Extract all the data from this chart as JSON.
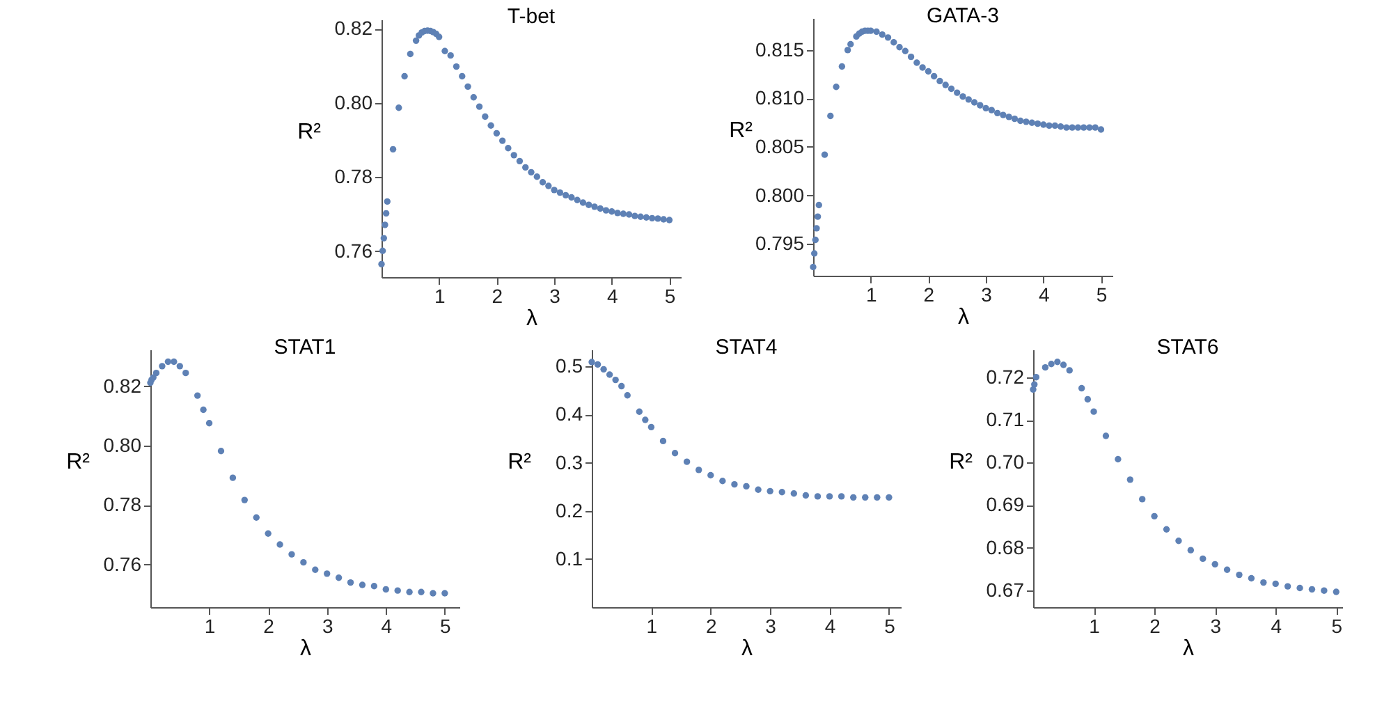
{
  "chart_data": [
    {
      "type": "scatter",
      "title": "T-bet",
      "xlabel": "λ",
      "ylabel": "R²",
      "color": "#5e81b5",
      "marker": "circle",
      "xlim": [
        0,
        5.2
      ],
      "xticks": [
        1,
        2,
        3,
        4,
        5
      ],
      "ylim": [
        0.753,
        0.8225
      ],
      "yticks": [
        0.76,
        0.78,
        {
          "value": 0.8,
          "label": "0.80"
        },
        0.82
      ],
      "x": [
        0,
        0.02,
        0.04,
        0.06,
        0.08,
        0.1,
        0.2,
        0.3,
        0.4,
        0.5,
        0.6,
        0.65,
        0.7,
        0.75,
        0.8,
        0.85,
        0.9,
        0.95,
        1.0,
        1.1,
        1.2,
        1.3,
        1.4,
        1.5,
        1.6,
        1.7,
        1.8,
        1.9,
        2.0,
        2.1,
        2.2,
        2.3,
        2.4,
        2.5,
        2.6,
        2.7,
        2.8,
        2.9,
        3.0,
        3.1,
        3.2,
        3.3,
        3.4,
        3.5,
        3.6,
        3.7,
        3.8,
        3.9,
        4.0,
        4.1,
        4.2,
        4.3,
        4.4,
        4.5,
        4.6,
        4.7,
        4.8,
        4.9,
        5.0
      ],
      "values": [
        0.7565,
        0.7601,
        0.7635,
        0.7671,
        0.7702,
        0.7734,
        0.7875,
        0.7987,
        0.8072,
        0.8132,
        0.8168,
        0.8182,
        0.819,
        0.8194,
        0.8195,
        0.8194,
        0.8191,
        0.8186,
        0.8178,
        0.814,
        0.8128,
        0.8098,
        0.8072,
        0.8044,
        0.8015,
        0.799,
        0.7963,
        0.7939,
        0.7918,
        0.7898,
        0.7878,
        0.7859,
        0.7843,
        0.7826,
        0.7813,
        0.7801,
        0.7786,
        0.7776,
        0.7765,
        0.7758,
        0.7751,
        0.7745,
        0.7738,
        0.7731,
        0.7725,
        0.772,
        0.7715,
        0.771,
        0.7707,
        0.7703,
        0.7701,
        0.7699,
        0.7695,
        0.7693,
        0.7691,
        0.7689,
        0.7688,
        0.7686,
        0.7684
      ]
    },
    {
      "type": "scatter",
      "title": "GATA-3",
      "xlabel": "λ",
      "ylabel": "R²",
      "color": "#5e81b5",
      "marker": "circle",
      "xlim": [
        0,
        5.2
      ],
      "xticks": [
        1,
        2,
        3,
        4,
        5
      ],
      "ylim": [
        0.7917,
        0.8183
      ],
      "yticks": [
        0.795,
        {
          "value": 0.8,
          "label": "0.800"
        },
        0.805,
        {
          "value": 0.81,
          "label": "0.810"
        },
        0.815
      ],
      "x": [
        0,
        0.02,
        0.04,
        0.06,
        0.08,
        0.1,
        0.2,
        0.3,
        0.4,
        0.5,
        0.6,
        0.65,
        0.75,
        0.8,
        0.85,
        0.9,
        0.95,
        1.0,
        1.1,
        1.2,
        1.3,
        1.4,
        1.5,
        1.6,
        1.7,
        1.8,
        1.9,
        2.0,
        2.1,
        2.2,
        2.3,
        2.4,
        2.5,
        2.6,
        2.7,
        2.8,
        2.9,
        3.0,
        3.1,
        3.2,
        3.3,
        3.4,
        3.5,
        3.6,
        3.7,
        3.8,
        3.9,
        4.0,
        4.1,
        4.2,
        4.3,
        4.4,
        4.5,
        4.6,
        4.7,
        4.8,
        4.9,
        5.0
      ],
      "values": [
        0.7926,
        0.794,
        0.7954,
        0.7966,
        0.7978,
        0.799,
        0.8042,
        0.8082,
        0.8112,
        0.8133,
        0.815,
        0.8156,
        0.8164,
        0.8167,
        0.8169,
        0.817,
        0.817,
        0.817,
        0.8169,
        0.8166,
        0.8163,
        0.8158,
        0.8153,
        0.8149,
        0.8143,
        0.8137,
        0.8132,
        0.8128,
        0.8123,
        0.8118,
        0.8114,
        0.811,
        0.8106,
        0.8102,
        0.8099,
        0.8096,
        0.8093,
        0.809,
        0.8088,
        0.8085,
        0.8083,
        0.8081,
        0.8079,
        0.8077,
        0.8076,
        0.8075,
        0.8074,
        0.8073,
        0.8072,
        0.8072,
        0.8071,
        0.807,
        0.807,
        0.807,
        0.807,
        0.807,
        0.807,
        0.8068
      ]
    },
    {
      "type": "scatter",
      "title": "STAT1",
      "xlabel": "λ",
      "ylabel": "R²",
      "color": "#5e81b5",
      "marker": "circle",
      "xlim": [
        0,
        5.25
      ],
      "xticks": [
        1,
        2,
        3,
        4,
        5
      ],
      "ylim": [
        0.7456,
        0.8324
      ],
      "yticks": [
        0.76,
        0.78,
        {
          "value": 0.8,
          "label": "0.80"
        },
        0.82
      ],
      "x": [
        0,
        0.02,
        0.05,
        0.1,
        0.2,
        0.3,
        0.4,
        0.5,
        0.6,
        0.8,
        0.9,
        1.0,
        1.2,
        1.4,
        1.6,
        1.8,
        2.0,
        2.2,
        2.4,
        2.6,
        2.8,
        3.0,
        3.2,
        3.4,
        3.6,
        3.8,
        4.0,
        4.2,
        4.4,
        4.6,
        4.8,
        5.0
      ],
      "values": [
        0.8212,
        0.8222,
        0.823,
        0.8245,
        0.8268,
        0.8283,
        0.8283,
        0.8268,
        0.8245,
        0.8169,
        0.8121,
        0.8076,
        0.7982,
        0.7892,
        0.7817,
        0.7758,
        0.7704,
        0.7667,
        0.7634,
        0.7607,
        0.7582,
        0.7569,
        0.7555,
        0.7539,
        0.7531,
        0.7527,
        0.7516,
        0.7512,
        0.7507,
        0.7507,
        0.7503,
        0.7503
      ]
    },
    {
      "type": "scatter",
      "title": "STAT4",
      "xlabel": "λ",
      "ylabel": "R²",
      "color": "#5e81b5",
      "marker": "circle",
      "xlim": [
        0,
        5.2
      ],
      "xticks": [
        1,
        2,
        3,
        4,
        5
      ],
      "ylim": [
        0,
        0.535
      ],
      "yticks": [
        0.1,
        0.2,
        0.3,
        0.4,
        0.5
      ],
      "x": [
        0,
        0.1,
        0.2,
        0.3,
        0.4,
        0.5,
        0.6,
        0.8,
        0.9,
        1.0,
        1.2,
        1.4,
        1.6,
        1.8,
        2.0,
        2.2,
        2.4,
        2.6,
        2.8,
        3.0,
        3.2,
        3.4,
        3.6,
        3.8,
        4.0,
        4.2,
        4.4,
        4.6,
        4.8,
        5.0
      ],
      "values": [
        0.509,
        0.504,
        0.494,
        0.483,
        0.472,
        0.459,
        0.44,
        0.406,
        0.389,
        0.374,
        0.345,
        0.32,
        0.302,
        0.285,
        0.274,
        0.262,
        0.255,
        0.251,
        0.244,
        0.241,
        0.239,
        0.236,
        0.232,
        0.23,
        0.23,
        0.23,
        0.228,
        0.228,
        0.228,
        0.228
      ]
    },
    {
      "type": "scatter",
      "title": "STAT6",
      "xlabel": "λ",
      "ylabel": "R²",
      "color": "#5e81b5",
      "marker": "circle",
      "xlim": [
        0,
        5.1
      ],
      "xticks": [
        1,
        2,
        3,
        4,
        5
      ],
      "ylim": [
        0.666,
        0.7266
      ],
      "yticks": [
        0.67,
        0.68,
        0.69,
        {
          "value": 0.7,
          "label": "0.70"
        },
        0.71,
        0.72
      ],
      "x": [
        0,
        0.02,
        0.05,
        0.2,
        0.3,
        0.4,
        0.5,
        0.6,
        0.8,
        0.9,
        1.0,
        1.2,
        1.4,
        1.6,
        1.8,
        2.0,
        2.2,
        2.4,
        2.6,
        2.8,
        3.0,
        3.2,
        3.4,
        3.6,
        3.8,
        4.0,
        4.2,
        4.4,
        4.6,
        4.8,
        5.0
      ],
      "values": [
        0.7172,
        0.7184,
        0.7201,
        0.7224,
        0.7232,
        0.7237,
        0.723,
        0.7217,
        0.7175,
        0.7149,
        0.712,
        0.7063,
        0.7008,
        0.696,
        0.6914,
        0.6874,
        0.6843,
        0.6816,
        0.6794,
        0.6774,
        0.6761,
        0.6748,
        0.6736,
        0.6728,
        0.6718,
        0.6715,
        0.6709,
        0.6705,
        0.6702,
        0.6699,
        0.6696
      ]
    }
  ]
}
